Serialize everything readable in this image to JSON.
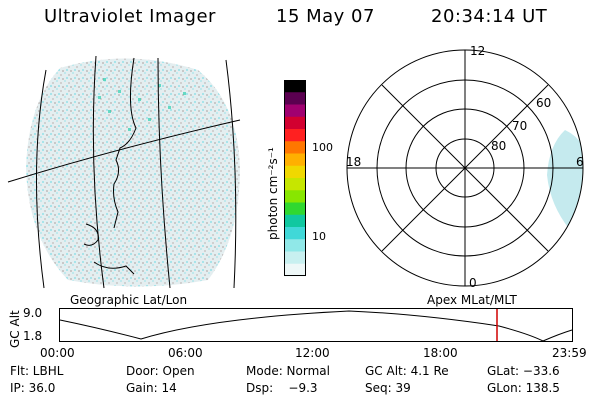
{
  "header": {
    "instrument": "Ultraviolet Imager",
    "date": "15 May 07",
    "time": "20:34:14 UT"
  },
  "left_panel": {
    "caption": "Geographic Lat/Lon"
  },
  "colorbar": {
    "unit_label": "photon cm⁻²s⁻¹",
    "ticks": [
      "100",
      "10"
    ],
    "colors": [
      "#000000",
      "#5a0050",
      "#a00070",
      "#d20030",
      "#ff2020",
      "#ff7700",
      "#ffb000",
      "#f0d800",
      "#c6e600",
      "#88e600",
      "#30d830",
      "#10c8a0",
      "#40d8d8",
      "#90e8e8",
      "#c8f0f0",
      "#eef8f8"
    ]
  },
  "polar_plot": {
    "caption": "Apex MLat/MLT",
    "mlt_labels": {
      "top": "12",
      "left": "18",
      "right": "6",
      "bottom": "0"
    },
    "lat_labels": [
      "60",
      "70",
      "80"
    ]
  },
  "altitude_strip": {
    "axis_label": "GC Alt",
    "y_max": "9.0",
    "y_min": "1.8",
    "x_ticks": [
      "00:00",
      "06:00",
      "12:00",
      "18:00",
      "23:59"
    ],
    "marker_color": "#d00000"
  },
  "status": {
    "row1": {
      "filter": "Flt: LBHL",
      "door": "Door: Open",
      "mode": "Mode: Normal",
      "gc_alt": "GC Alt: 4.1 Re",
      "glat": "GLat: −33.6"
    },
    "row2": {
      "ip": "IP: 36.0",
      "gain": "Gain: 14",
      "dsp": "Dsp:    −9.3",
      "seq": "Seq: 39",
      "glon": "GLon: 138.5"
    }
  }
}
